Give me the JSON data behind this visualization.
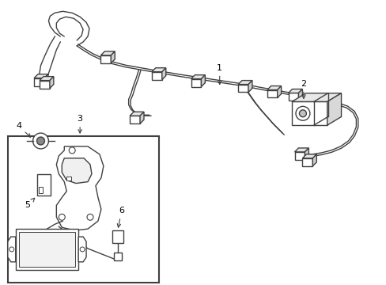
{
  "bg_color": "#ffffff",
  "line_color": "#404040",
  "line_width": 1.0,
  "fig_width": 4.89,
  "fig_height": 3.6,
  "dpi": 100
}
